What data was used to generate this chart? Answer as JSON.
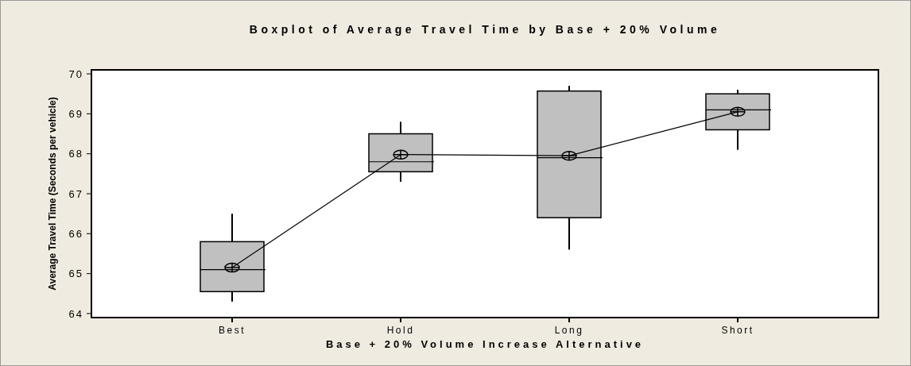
{
  "chart_data": {
    "type": "box",
    "title": "Boxplot of Average Travel Time by Base + 20% Volume",
    "xlabel": "Base + 20% Volume Increase Alternative",
    "ylabel": "Average Travel Time (Seconds per vehicle)",
    "categories": [
      "Best",
      "Hold",
      "Long",
      "Short"
    ],
    "color": "#c0c0c0",
    "ylim": [
      63.9,
      70.1
    ],
    "yticks": [
      64,
      65,
      66,
      67,
      68,
      69,
      70
    ],
    "grid": false,
    "boxes": [
      {
        "low": 64.3,
        "q1": 64.55,
        "median": 65.1,
        "q3": 65.8,
        "high": 66.5
      },
      {
        "low": 67.3,
        "q1": 67.55,
        "median": 67.8,
        "q3": 68.5,
        "high": 68.8
      },
      {
        "low": 65.6,
        "q1": 66.4,
        "median": 67.9,
        "q3": 69.57,
        "high": 69.7
      },
      {
        "low": 68.1,
        "q1": 68.6,
        "median": 69.1,
        "q3": 69.5,
        "high": 69.6
      }
    ],
    "series": [
      {
        "type": "line",
        "color": "#000000",
        "marker": "cross",
        "values": [
          65.15,
          67.98,
          67.95,
          69.05
        ]
      }
    ]
  }
}
